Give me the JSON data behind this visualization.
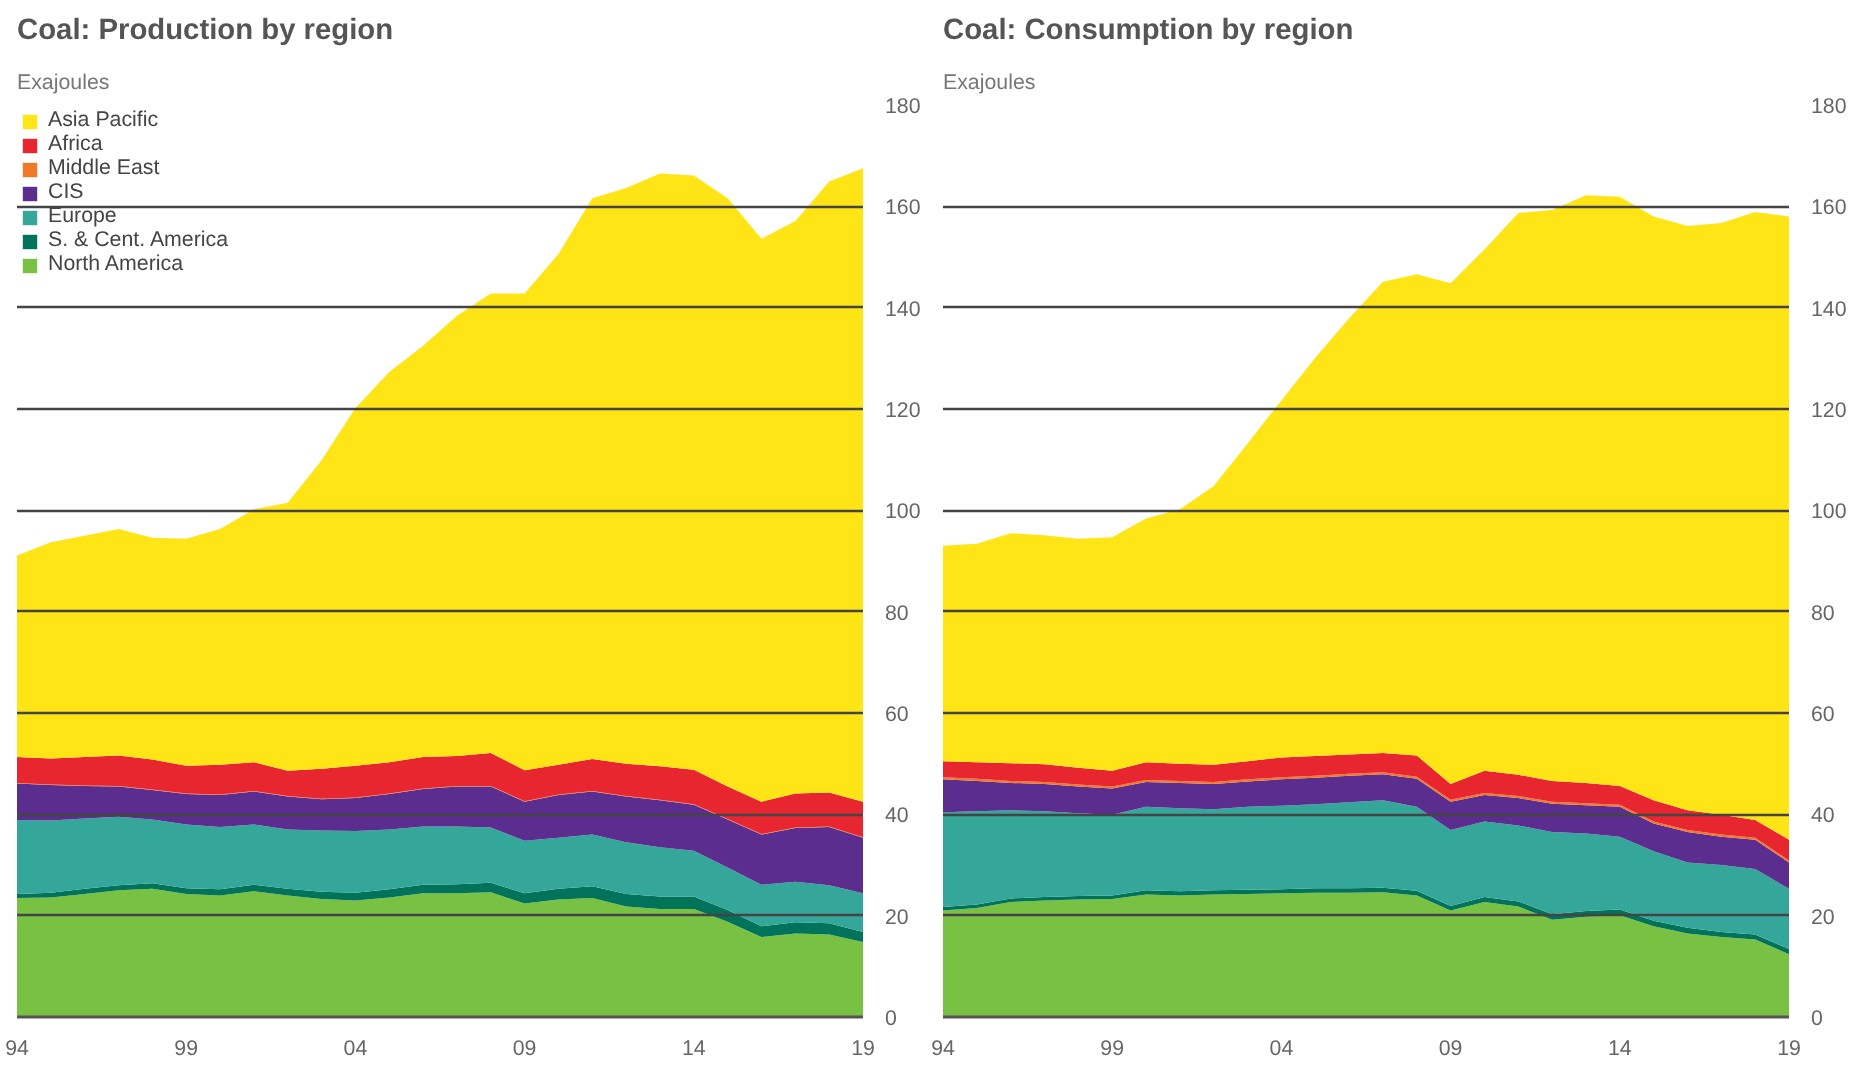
{
  "chart_data": [
    {
      "type": "area",
      "stacked": true,
      "title": "Coal: Production by region",
      "subtitle": "Exajoules",
      "x": [
        1994,
        1995,
        1996,
        1997,
        1998,
        1999,
        2000,
        2001,
        2002,
        2003,
        2004,
        2005,
        2006,
        2007,
        2008,
        2009,
        2010,
        2011,
        2012,
        2013,
        2014,
        2015,
        2016,
        2017,
        2018,
        2019
      ],
      "xlim": [
        1994,
        2019
      ],
      "xticks": [
        {
          "value": 1994,
          "label": "94"
        },
        {
          "value": 1999,
          "label": "99"
        },
        {
          "value": 2004,
          "label": "04"
        },
        {
          "value": 2009,
          "label": "09"
        },
        {
          "value": 2014,
          "label": "14"
        },
        {
          "value": 2019,
          "label": "19"
        }
      ],
      "ylim": [
        0,
        180
      ],
      "yticks": [
        0,
        20,
        40,
        60,
        80,
        100,
        120,
        140,
        160,
        180
      ],
      "grid": "y",
      "legend": "top left",
      "series": [
        {
          "name": "North America",
          "color": "#79c142",
          "values": [
            23.5,
            23.6,
            24.3,
            25.0,
            25.3,
            24.3,
            24.0,
            24.8,
            24.0,
            23.3,
            23.0,
            23.6,
            24.4,
            24.4,
            24.6,
            22.4,
            23.2,
            23.5,
            21.8,
            21.3,
            21.3,
            18.8,
            15.8,
            16.5,
            16.3,
            14.8
          ]
        },
        {
          "name": "S. & Cent. America",
          "color": "#00735a",
          "values": [
            0.8,
            0.9,
            1.0,
            1.0,
            1.1,
            1.1,
            1.2,
            1.3,
            1.3,
            1.4,
            1.5,
            1.6,
            1.7,
            1.8,
            1.9,
            2.0,
            2.1,
            2.3,
            2.5,
            2.5,
            2.5,
            2.3,
            2.1,
            2.2,
            2.2,
            2.0
          ]
        },
        {
          "name": "Europe",
          "color": "#35a79a",
          "values": [
            14.6,
            14.3,
            13.9,
            13.5,
            12.6,
            12.6,
            12.3,
            11.9,
            11.7,
            12.1,
            12.2,
            11.8,
            11.5,
            11.4,
            10.9,
            10.4,
            10.1,
            10.2,
            10.2,
            9.7,
            9.0,
            8.4,
            8.2,
            8.0,
            7.5,
            7.6
          ]
        },
        {
          "name": "CIS",
          "color": "#5b2d8e",
          "values": [
            7.2,
            7.0,
            6.4,
            6.0,
            5.8,
            6.0,
            6.3,
            6.5,
            6.5,
            6.2,
            6.5,
            7.0,
            7.4,
            7.9,
            8.1,
            7.7,
            8.4,
            8.5,
            9.0,
            9.3,
            9.1,
            9.5,
            9.9,
            10.6,
            11.5,
            11.0
          ]
        },
        {
          "name": "Middle East",
          "color": "#f07a2a",
          "values": [
            0.1,
            0.1,
            0.1,
            0.1,
            0.1,
            0.1,
            0.1,
            0.1,
            0.1,
            0.1,
            0.1,
            0.1,
            0.1,
            0.1,
            0.1,
            0.1,
            0.1,
            0.1,
            0.1,
            0.1,
            0.1,
            0.1,
            0.1,
            0.1,
            0.1,
            0.1
          ]
        },
        {
          "name": "Africa",
          "color": "#e8262f",
          "values": [
            5.1,
            5.1,
            5.6,
            6.0,
            5.9,
            5.5,
            5.9,
            5.7,
            5.0,
            5.9,
            6.3,
            6.2,
            6.2,
            5.9,
            6.5,
            6.1,
            5.9,
            6.3,
            6.4,
            6.6,
            6.8,
            6.4,
            6.4,
            6.7,
            6.7,
            7.0
          ]
        },
        {
          "name": "Asia Pacific",
          "color": "#ffe516",
          "values": [
            39.8,
            42.7,
            43.7,
            44.7,
            43.8,
            44.8,
            46.5,
            49.9,
            52.9,
            60.9,
            70.6,
            77.0,
            81.2,
            86.9,
            90.7,
            94.1,
            100.8,
            110.7,
            113.6,
            117.0,
            117.3,
            116.1,
            111.1,
            113.0,
            120.6,
            125.0
          ]
        }
      ]
    },
    {
      "type": "area",
      "stacked": true,
      "title": "Coal: Consumption by region",
      "subtitle": "Exajoules",
      "x": [
        1994,
        1995,
        1996,
        1997,
        1998,
        1999,
        2000,
        2001,
        2002,
        2003,
        2004,
        2005,
        2006,
        2007,
        2008,
        2009,
        2010,
        2011,
        2012,
        2013,
        2014,
        2015,
        2016,
        2017,
        2018,
        2019
      ],
      "xlim": [
        1994,
        2019
      ],
      "xticks": [
        {
          "value": 1994,
          "label": "94"
        },
        {
          "value": 1999,
          "label": "99"
        },
        {
          "value": 2004,
          "label": "04"
        },
        {
          "value": 2009,
          "label": "09"
        },
        {
          "value": 2014,
          "label": "14"
        },
        {
          "value": 2019,
          "label": "19"
        }
      ],
      "ylim": [
        0,
        180
      ],
      "yticks": [
        0,
        20,
        40,
        60,
        80,
        100,
        120,
        140,
        160,
        180
      ],
      "grid": "y",
      "series": [
        {
          "color": "#79c142",
          "values": [
            21.0,
            21.5,
            22.7,
            23.0,
            23.2,
            23.3,
            24.2,
            24.0,
            24.2,
            24.3,
            24.4,
            24.5,
            24.5,
            24.6,
            24.0,
            21.0,
            22.7,
            21.8,
            19.2,
            19.8,
            20.1,
            17.9,
            16.5,
            15.8,
            15.3,
            12.4
          ]
        },
        {
          "color": "#00735a",
          "values": [
            0.7,
            0.7,
            0.7,
            0.7,
            0.7,
            0.7,
            0.8,
            0.8,
            0.8,
            0.8,
            0.8,
            0.9,
            0.9,
            0.9,
            0.9,
            0.9,
            1.0,
            1.0,
            1.1,
            1.1,
            1.1,
            1.1,
            1.1,
            1.0,
            1.0,
            1.0
          ]
        },
        {
          "color": "#35a79a",
          "values": [
            18.7,
            18.4,
            17.4,
            16.9,
            16.3,
            15.9,
            16.5,
            16.4,
            16.0,
            16.4,
            16.5,
            16.6,
            17.0,
            17.3,
            16.6,
            15.0,
            14.9,
            15.0,
            16.2,
            15.3,
            14.4,
            13.7,
            12.9,
            13.2,
            12.9,
            11.9
          ]
        },
        {
          "color": "#5b2d8e",
          "values": [
            6.5,
            6.0,
            5.4,
            5.4,
            5.3,
            5.2,
            4.9,
            5.0,
            5.0,
            5.0,
            5.2,
            5.2,
            5.2,
            5.1,
            5.5,
            5.6,
            5.2,
            5.4,
            5.6,
            5.6,
            5.9,
            5.5,
            6.0,
            5.6,
            5.8,
            5.2
          ]
        },
        {
          "color": "#f07a2a",
          "values": [
            0.4,
            0.4,
            0.4,
            0.4,
            0.4,
            0.4,
            0.4,
            0.4,
            0.4,
            0.4,
            0.4,
            0.4,
            0.4,
            0.4,
            0.4,
            0.4,
            0.4,
            0.4,
            0.4,
            0.4,
            0.4,
            0.4,
            0.4,
            0.4,
            0.4,
            0.4
          ]
        },
        {
          "color": "#e8262f",
          "values": [
            3.2,
            3.3,
            3.5,
            3.5,
            3.3,
            3.1,
            3.5,
            3.4,
            3.4,
            3.6,
            3.9,
            3.9,
            3.8,
            3.8,
            4.2,
            3.1,
            4.4,
            4.2,
            4.1,
            4.0,
            3.7,
            4.2,
            3.9,
            3.9,
            3.5,
            4.1
          ]
        },
        {
          "color": "#ffe516",
          "values": [
            42.5,
            43.1,
            45.4,
            45.2,
            45.2,
            46.1,
            48.1,
            50.2,
            55.0,
            62.7,
            70.5,
            78.6,
            86.1,
            93.0,
            95.0,
            98.8,
            102.9,
            110.9,
            112.7,
            116.0,
            116.3,
            115.2,
            115.3,
            116.8,
            120.0,
            123.0
          ]
        }
      ]
    }
  ]
}
